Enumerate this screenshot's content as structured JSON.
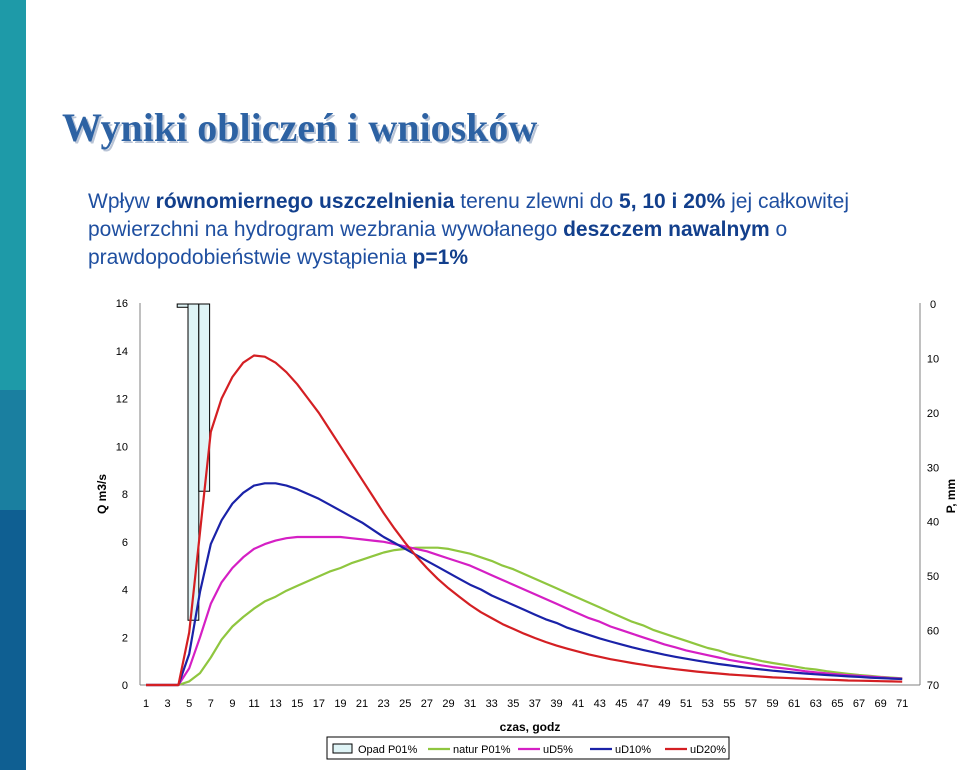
{
  "slide": {
    "title": "Wyniki obliczeń i wniosków",
    "subtitle_parts": [
      {
        "text": "Wpływ ",
        "bold": false
      },
      {
        "text": "równomiernego uszczelnienia",
        "bold": true
      },
      {
        "text": " terenu zlewni do ",
        "bold": false
      },
      {
        "text": "5, 10 i 20%",
        "bold": true
      },
      {
        "text": " jej całkowitej powierzchni na hydrogram wezbrania wywołanego ",
        "bold": false
      },
      {
        "text": "deszczem nawalnym",
        "bold": true
      },
      {
        "text": " o prawdopodobieństwie wystąpienia ",
        "bold": false
      },
      {
        "text": "p=1%",
        "bold": true
      }
    ]
  },
  "chart_data": {
    "type": "line",
    "xlabel": "czas, godz",
    "ylabel": "Q m3/s",
    "y2label": "P, mm",
    "xlim": [
      1,
      72
    ],
    "ylim": [
      0,
      16
    ],
    "y2lim": [
      0,
      70
    ],
    "y2_inverted": true,
    "x_ticks": [
      1,
      3,
      5,
      7,
      9,
      11,
      13,
      15,
      17,
      19,
      21,
      23,
      25,
      27,
      29,
      31,
      33,
      35,
      37,
      39,
      41,
      43,
      45,
      47,
      49,
      51,
      53,
      55,
      57,
      59,
      61,
      63,
      65,
      67,
      69,
      71
    ],
    "y_ticks": [
      0,
      2,
      4,
      6,
      8,
      10,
      12,
      14,
      16
    ],
    "y2_ticks": [
      0,
      10,
      20,
      30,
      40,
      50,
      60,
      70
    ],
    "grid": false,
    "legend_position": "bottom",
    "bars": {
      "name": "Opad P01%",
      "color": "#dff4f6",
      "axis": "y2",
      "x": [
        3,
        4,
        5
      ],
      "values": [
        0.6,
        58.1,
        34.4
      ]
    },
    "series": [
      {
        "name": "natur P01%",
        "color": "#8fc63f",
        "axis": "y",
        "points": [
          [
            1,
            0
          ],
          [
            2,
            0
          ],
          [
            3,
            0
          ],
          [
            4,
            0
          ],
          [
            5,
            0.15
          ],
          [
            6,
            0.5
          ],
          [
            7,
            1.15
          ],
          [
            8,
            1.9
          ],
          [
            9,
            2.45
          ],
          [
            10,
            2.85
          ],
          [
            11,
            3.2
          ],
          [
            12,
            3.5
          ],
          [
            13,
            3.7
          ],
          [
            14,
            3.95
          ],
          [
            15,
            4.15
          ],
          [
            16,
            4.35
          ],
          [
            17,
            4.55
          ],
          [
            18,
            4.75
          ],
          [
            19,
            4.9
          ],
          [
            20,
            5.1
          ],
          [
            21,
            5.25
          ],
          [
            22,
            5.4
          ],
          [
            23,
            5.55
          ],
          [
            24,
            5.65
          ],
          [
            25,
            5.7
          ],
          [
            26,
            5.75
          ],
          [
            27,
            5.75
          ],
          [
            28,
            5.75
          ],
          [
            29,
            5.7
          ],
          [
            30,
            5.6
          ],
          [
            31,
            5.5
          ],
          [
            32,
            5.35
          ],
          [
            33,
            5.2
          ],
          [
            34,
            5.0
          ],
          [
            35,
            4.85
          ],
          [
            36,
            4.65
          ],
          [
            37,
            4.45
          ],
          [
            38,
            4.25
          ],
          [
            39,
            4.05
          ],
          [
            40,
            3.85
          ],
          [
            41,
            3.65
          ],
          [
            42,
            3.45
          ],
          [
            43,
            3.25
          ],
          [
            44,
            3.05
          ],
          [
            45,
            2.85
          ],
          [
            46,
            2.65
          ],
          [
            47,
            2.5
          ],
          [
            48,
            2.3
          ],
          [
            49,
            2.15
          ],
          [
            50,
            2.0
          ],
          [
            51,
            1.85
          ],
          [
            52,
            1.7
          ],
          [
            53,
            1.55
          ],
          [
            54,
            1.45
          ],
          [
            55,
            1.3
          ],
          [
            56,
            1.2
          ],
          [
            57,
            1.1
          ],
          [
            58,
            1.0
          ],
          [
            59,
            0.92
          ],
          [
            60,
            0.85
          ],
          [
            61,
            0.78
          ],
          [
            62,
            0.7
          ],
          [
            63,
            0.65
          ],
          [
            64,
            0.58
          ],
          [
            65,
            0.52
          ],
          [
            66,
            0.47
          ],
          [
            67,
            0.42
          ],
          [
            68,
            0.38
          ],
          [
            69,
            0.34
          ],
          [
            70,
            0.31
          ],
          [
            71,
            0.28
          ]
        ]
      },
      {
        "name": "uD5%",
        "color": "#d51fc4",
        "axis": "y",
        "points": [
          [
            1,
            0
          ],
          [
            2,
            0
          ],
          [
            3,
            0
          ],
          [
            4,
            0
          ],
          [
            5,
            0.7
          ],
          [
            6,
            2.0
          ],
          [
            7,
            3.4
          ],
          [
            8,
            4.3
          ],
          [
            9,
            4.9
          ],
          [
            10,
            5.35
          ],
          [
            11,
            5.7
          ],
          [
            12,
            5.9
          ],
          [
            13,
            6.05
          ],
          [
            14,
            6.15
          ],
          [
            15,
            6.2
          ],
          [
            16,
            6.2
          ],
          [
            17,
            6.2
          ],
          [
            18,
            6.2
          ],
          [
            19,
            6.2
          ],
          [
            20,
            6.15
          ],
          [
            21,
            6.1
          ],
          [
            22,
            6.05
          ],
          [
            23,
            6.0
          ],
          [
            24,
            5.9
          ],
          [
            25,
            5.8
          ],
          [
            26,
            5.7
          ],
          [
            27,
            5.6
          ],
          [
            28,
            5.45
          ],
          [
            29,
            5.3
          ],
          [
            30,
            5.15
          ],
          [
            31,
            5.0
          ],
          [
            32,
            4.8
          ],
          [
            33,
            4.6
          ],
          [
            34,
            4.4
          ],
          [
            35,
            4.2
          ],
          [
            36,
            4.0
          ],
          [
            37,
            3.8
          ],
          [
            38,
            3.6
          ],
          [
            39,
            3.4
          ],
          [
            40,
            3.2
          ],
          [
            41,
            3.0
          ],
          [
            42,
            2.8
          ],
          [
            43,
            2.65
          ],
          [
            44,
            2.45
          ],
          [
            45,
            2.3
          ],
          [
            46,
            2.15
          ],
          [
            47,
            2.0
          ],
          [
            48,
            1.85
          ],
          [
            49,
            1.7
          ],
          [
            50,
            1.58
          ],
          [
            51,
            1.45
          ],
          [
            52,
            1.35
          ],
          [
            53,
            1.25
          ],
          [
            54,
            1.15
          ],
          [
            55,
            1.05
          ],
          [
            56,
            0.97
          ],
          [
            57,
            0.9
          ],
          [
            58,
            0.82
          ],
          [
            59,
            0.75
          ],
          [
            60,
            0.7
          ],
          [
            61,
            0.64
          ],
          [
            62,
            0.58
          ],
          [
            63,
            0.53
          ],
          [
            64,
            0.49
          ],
          [
            65,
            0.45
          ],
          [
            66,
            0.41
          ],
          [
            67,
            0.38
          ],
          [
            68,
            0.35
          ],
          [
            69,
            0.32
          ],
          [
            70,
            0.29
          ],
          [
            71,
            0.27
          ]
        ]
      },
      {
        "name": "uD10%",
        "color": "#1a22a8",
        "axis": "y",
        "points": [
          [
            1,
            0
          ],
          [
            2,
            0
          ],
          [
            3,
            0
          ],
          [
            4,
            0
          ],
          [
            5,
            1.3
          ],
          [
            6,
            3.9
          ],
          [
            7,
            5.9
          ],
          [
            8,
            6.9
          ],
          [
            9,
            7.6
          ],
          [
            10,
            8.05
          ],
          [
            11,
            8.35
          ],
          [
            12,
            8.45
          ],
          [
            13,
            8.45
          ],
          [
            14,
            8.35
          ],
          [
            15,
            8.2
          ],
          [
            16,
            8.0
          ],
          [
            17,
            7.8
          ],
          [
            18,
            7.55
          ],
          [
            19,
            7.3
          ],
          [
            20,
            7.05
          ],
          [
            21,
            6.8
          ],
          [
            22,
            6.5
          ],
          [
            23,
            6.2
          ],
          [
            24,
            5.95
          ],
          [
            25,
            5.7
          ],
          [
            26,
            5.45
          ],
          [
            27,
            5.2
          ],
          [
            28,
            4.95
          ],
          [
            29,
            4.7
          ],
          [
            30,
            4.45
          ],
          [
            31,
            4.2
          ],
          [
            32,
            4.0
          ],
          [
            33,
            3.75
          ],
          [
            34,
            3.55
          ],
          [
            35,
            3.35
          ],
          [
            36,
            3.15
          ],
          [
            37,
            2.95
          ],
          [
            38,
            2.75
          ],
          [
            39,
            2.6
          ],
          [
            40,
            2.4
          ],
          [
            41,
            2.25
          ],
          [
            42,
            2.1
          ],
          [
            43,
            1.95
          ],
          [
            44,
            1.82
          ],
          [
            45,
            1.7
          ],
          [
            46,
            1.58
          ],
          [
            47,
            1.47
          ],
          [
            48,
            1.37
          ],
          [
            49,
            1.27
          ],
          [
            50,
            1.18
          ],
          [
            51,
            1.1
          ],
          [
            52,
            1.02
          ],
          [
            53,
            0.95
          ],
          [
            54,
            0.88
          ],
          [
            55,
            0.82
          ],
          [
            56,
            0.76
          ],
          [
            57,
            0.7
          ],
          [
            58,
            0.65
          ],
          [
            59,
            0.6
          ],
          [
            60,
            0.56
          ],
          [
            61,
            0.52
          ],
          [
            62,
            0.48
          ],
          [
            63,
            0.45
          ],
          [
            64,
            0.42
          ],
          [
            65,
            0.39
          ],
          [
            66,
            0.36
          ],
          [
            67,
            0.34
          ],
          [
            68,
            0.31
          ],
          [
            69,
            0.29
          ],
          [
            70,
            0.27
          ],
          [
            71,
            0.25
          ]
        ]
      },
      {
        "name": "uD20%",
        "color": "#d41f23",
        "axis": "y",
        "points": [
          [
            1,
            0
          ],
          [
            2,
            0
          ],
          [
            3,
            0
          ],
          [
            4,
            0
          ],
          [
            5,
            2.2
          ],
          [
            6,
            6.4
          ],
          [
            7,
            10.6
          ],
          [
            8,
            12.0
          ],
          [
            9,
            12.9
          ],
          [
            10,
            13.5
          ],
          [
            11,
            13.8
          ],
          [
            12,
            13.75
          ],
          [
            13,
            13.5
          ],
          [
            14,
            13.1
          ],
          [
            15,
            12.6
          ],
          [
            16,
            12.0
          ],
          [
            17,
            11.4
          ],
          [
            18,
            10.7
          ],
          [
            19,
            10.0
          ],
          [
            20,
            9.3
          ],
          [
            21,
            8.6
          ],
          [
            22,
            7.9
          ],
          [
            23,
            7.2
          ],
          [
            24,
            6.55
          ],
          [
            25,
            5.95
          ],
          [
            26,
            5.4
          ],
          [
            27,
            4.9
          ],
          [
            28,
            4.45
          ],
          [
            29,
            4.05
          ],
          [
            30,
            3.7
          ],
          [
            31,
            3.35
          ],
          [
            32,
            3.05
          ],
          [
            33,
            2.8
          ],
          [
            34,
            2.55
          ],
          [
            35,
            2.35
          ],
          [
            36,
            2.15
          ],
          [
            37,
            1.97
          ],
          [
            38,
            1.8
          ],
          [
            39,
            1.65
          ],
          [
            40,
            1.52
          ],
          [
            41,
            1.4
          ],
          [
            42,
            1.28
          ],
          [
            43,
            1.18
          ],
          [
            44,
            1.08
          ],
          [
            45,
            1.0
          ],
          [
            46,
            0.92
          ],
          [
            47,
            0.85
          ],
          [
            48,
            0.78
          ],
          [
            49,
            0.72
          ],
          [
            50,
            0.66
          ],
          [
            51,
            0.61
          ],
          [
            52,
            0.56
          ],
          [
            53,
            0.52
          ],
          [
            54,
            0.48
          ],
          [
            55,
            0.44
          ],
          [
            56,
            0.41
          ],
          [
            57,
            0.38
          ],
          [
            58,
            0.35
          ],
          [
            59,
            0.32
          ],
          [
            60,
            0.3
          ],
          [
            61,
            0.28
          ],
          [
            62,
            0.26
          ],
          [
            63,
            0.24
          ],
          [
            64,
            0.22
          ],
          [
            65,
            0.21
          ],
          [
            66,
            0.19
          ],
          [
            67,
            0.18
          ],
          [
            68,
            0.17
          ],
          [
            69,
            0.16
          ],
          [
            70,
            0.15
          ],
          [
            71,
            0.14
          ]
        ]
      }
    ]
  }
}
